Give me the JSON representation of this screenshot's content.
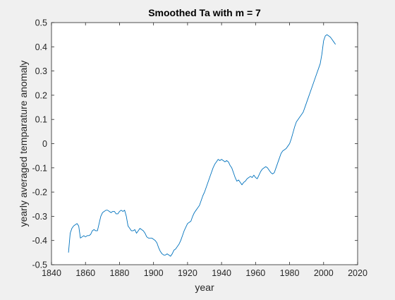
{
  "chart_data": {
    "type": "line",
    "title": "Smoothed Ta with m = 7",
    "xlabel": "year",
    "ylabel": "yearly averaged temparature anomaly",
    "xlim": [
      1840,
      2020
    ],
    "ylim": [
      -0.5,
      0.5
    ],
    "xticks": [
      1840,
      1860,
      1880,
      1900,
      1920,
      1940,
      1960,
      1980,
      2000,
      2020
    ],
    "yticks": [
      -0.5,
      -0.4,
      -0.3,
      -0.2,
      -0.1,
      0,
      0.1,
      0.2,
      0.3,
      0.4,
      0.5
    ],
    "xtick_labels": [
      "1840",
      "1860",
      "1880",
      "1900",
      "1920",
      "1940",
      "1960",
      "1980",
      "2000",
      "2020"
    ],
    "ytick_labels": [
      "-0.5",
      "-0.4",
      "-0.3",
      "-0.2",
      "-0.1",
      "0",
      "0.1",
      "0.2",
      "0.3",
      "0.4",
      "0.5"
    ],
    "grid": false,
    "line_color": "#0072bd",
    "series": [
      {
        "x": [
          1850,
          1851,
          1852,
          1853,
          1854,
          1855,
          1856,
          1857,
          1858,
          1859,
          1860,
          1861,
          1862,
          1863,
          1864,
          1865,
          1866,
          1867,
          1868,
          1869,
          1870,
          1871,
          1872,
          1873,
          1874,
          1875,
          1876,
          1877,
          1878,
          1879,
          1880,
          1881,
          1882,
          1883,
          1884,
          1885,
          1886,
          1887,
          1888,
          1889,
          1890,
          1891,
          1892,
          1893,
          1894,
          1895,
          1896,
          1897,
          1898,
          1899,
          1900,
          1901,
          1902,
          1903,
          1904,
          1905,
          1906,
          1907,
          1908,
          1909,
          1910,
          1911,
          1912,
          1913,
          1914,
          1915,
          1916,
          1917,
          1918,
          1919,
          1920,
          1921,
          1922,
          1923,
          1924,
          1925,
          1926,
          1927,
          1928,
          1929,
          1930,
          1931,
          1932,
          1933,
          1934,
          1935,
          1936,
          1937,
          1938,
          1939,
          1940,
          1941,
          1942,
          1943,
          1944,
          1945,
          1946,
          1947,
          1948,
          1949,
          1950,
          1951,
          1952,
          1953,
          1954,
          1955,
          1956,
          1957,
          1958,
          1959,
          1960,
          1961,
          1962,
          1963,
          1964,
          1965,
          1966,
          1967,
          1968,
          1969,
          1970,
          1971,
          1972,
          1973,
          1974,
          1975,
          1976,
          1977,
          1978,
          1979,
          1980,
          1981,
          1982,
          1983,
          1984,
          1985,
          1986,
          1987,
          1988,
          1989,
          1990,
          1991,
          1992,
          1993,
          1994,
          1995,
          1996,
          1997,
          1998,
          1999,
          2000,
          2001,
          2002,
          2003,
          2004,
          2005,
          2006,
          2007
        ],
        "y": [
          -0.45,
          -0.37,
          -0.35,
          -0.34,
          -0.335,
          -0.33,
          -0.34,
          -0.39,
          -0.385,
          -0.38,
          -0.385,
          -0.38,
          -0.38,
          -0.375,
          -0.36,
          -0.355,
          -0.36,
          -0.36,
          -0.33,
          -0.3,
          -0.285,
          -0.28,
          -0.275,
          -0.275,
          -0.28,
          -0.285,
          -0.28,
          -0.28,
          -0.29,
          -0.29,
          -0.28,
          -0.275,
          -0.28,
          -0.275,
          -0.3,
          -0.34,
          -0.35,
          -0.36,
          -0.36,
          -0.355,
          -0.37,
          -0.36,
          -0.35,
          -0.355,
          -0.36,
          -0.37,
          -0.385,
          -0.39,
          -0.39,
          -0.39,
          -0.395,
          -0.4,
          -0.41,
          -0.43,
          -0.445,
          -0.455,
          -0.46,
          -0.46,
          -0.455,
          -0.46,
          -0.465,
          -0.455,
          -0.44,
          -0.435,
          -0.425,
          -0.415,
          -0.4,
          -0.38,
          -0.36,
          -0.345,
          -0.33,
          -0.325,
          -0.32,
          -0.3,
          -0.285,
          -0.275,
          -0.265,
          -0.255,
          -0.235,
          -0.215,
          -0.2,
          -0.18,
          -0.16,
          -0.14,
          -0.12,
          -0.1,
          -0.085,
          -0.075,
          -0.065,
          -0.07,
          -0.065,
          -0.07,
          -0.075,
          -0.07,
          -0.075,
          -0.09,
          -0.1,
          -0.12,
          -0.14,
          -0.155,
          -0.15,
          -0.16,
          -0.17,
          -0.16,
          -0.155,
          -0.145,
          -0.14,
          -0.135,
          -0.14,
          -0.13,
          -0.14,
          -0.145,
          -0.13,
          -0.115,
          -0.105,
          -0.1,
          -0.095,
          -0.1,
          -0.11,
          -0.12,
          -0.125,
          -0.12,
          -0.1,
          -0.08,
          -0.06,
          -0.04,
          -0.03,
          -0.025,
          -0.02,
          -0.01,
          0.0,
          0.02,
          0.045,
          0.07,
          0.09,
          0.1,
          0.11,
          0.12,
          0.13,
          0.15,
          0.17,
          0.19,
          0.21,
          0.23,
          0.25,
          0.27,
          0.29,
          0.31,
          0.33,
          0.37,
          0.425,
          0.445,
          0.45,
          0.445,
          0.44,
          0.43,
          0.42,
          0.41
        ]
      }
    ]
  }
}
